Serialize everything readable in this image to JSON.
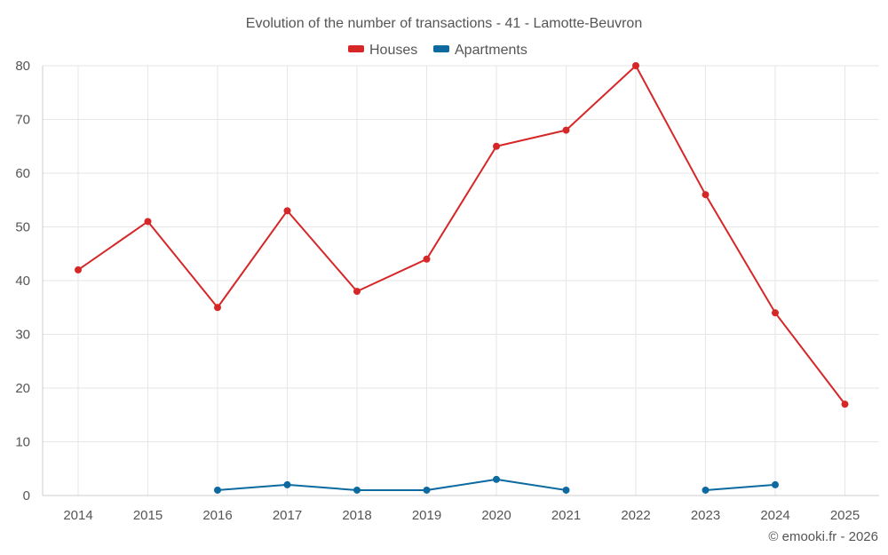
{
  "chart_data": {
    "type": "line",
    "title": "Evolution of the number of transactions - 41 - Lamotte-Beuvron",
    "xlabel": "",
    "ylabel": "",
    "categories": [
      "2014",
      "2015",
      "2016",
      "2017",
      "2018",
      "2019",
      "2020",
      "2021",
      "2022",
      "2023",
      "2024",
      "2025"
    ],
    "ylim": [
      0,
      80
    ],
    "yticks": [
      0,
      10,
      20,
      30,
      40,
      50,
      60,
      70,
      80
    ],
    "grid": true,
    "legend_position": "top-center",
    "series": [
      {
        "name": "Houses",
        "color": "#d62728",
        "values": [
          42,
          51,
          35,
          53,
          38,
          44,
          65,
          68,
          80,
          56,
          34,
          17
        ]
      },
      {
        "name": "Apartments",
        "color": "#0d6aa1",
        "values": [
          null,
          null,
          1,
          2,
          1,
          1,
          3,
          1,
          null,
          1,
          2,
          null
        ]
      }
    ]
  },
  "credit": "© emooki.fr - 2026"
}
